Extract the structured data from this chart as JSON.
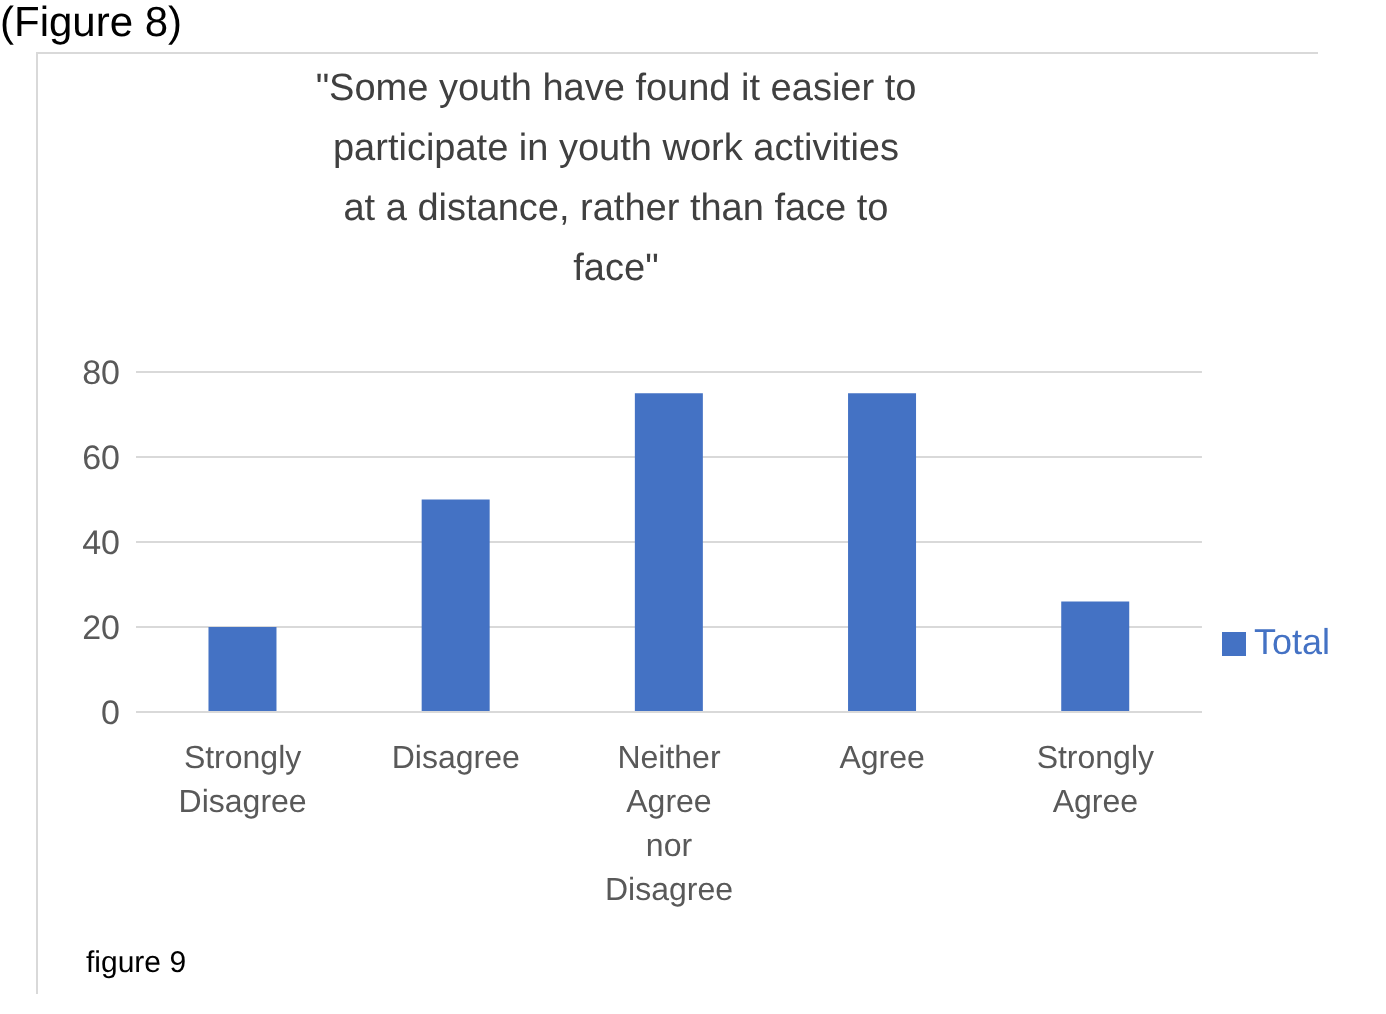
{
  "chart_data": {
    "type": "bar",
    "title": "\"Some youth have found it easier to participate in youth work activities at a distance, rather than face to face\"",
    "categories": [
      "Strongly Disagree",
      "Disagree",
      "Neither Agree nor Disagree",
      "Agree",
      "Strongly Agree"
    ],
    "series": [
      {
        "name": "Total",
        "color": "#4472c4",
        "values": [
          20,
          50,
          75,
          75,
          26
        ]
      }
    ],
    "ylim": [
      0,
      80
    ],
    "yticks": [
      0,
      20,
      40,
      60,
      80
    ],
    "grid": "y",
    "legend": "right",
    "annotations": [
      "(Figure 8)",
      "figure 9"
    ]
  }
}
